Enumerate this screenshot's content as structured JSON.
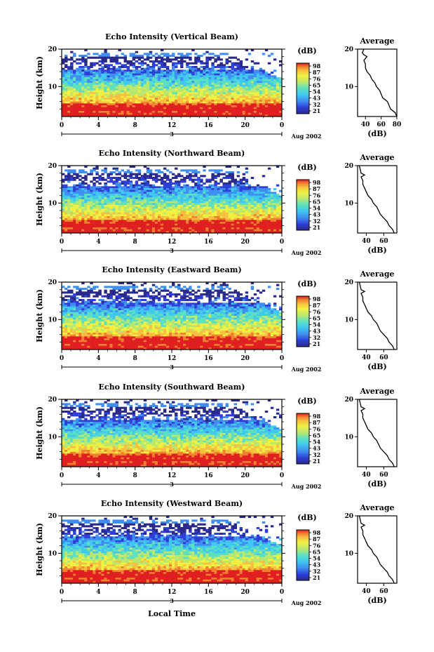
{
  "panels": [
    {
      "title": "Echo Intensity (Vertical Beam)",
      "xticks": [
        "0",
        "4",
        "8",
        "12",
        "16",
        "20",
        "0"
      ],
      "date": "Aug 2002",
      "day": "3",
      "yticks": [
        "10",
        "20"
      ],
      "ylabel": "Height (km)",
      "cbar_unit": "(dB)",
      "cbar_ticks": [
        "98",
        "87",
        "76",
        "65",
        "54",
        "43",
        "32",
        "21"
      ],
      "avg_title": "Average",
      "avg_xticks": [
        "40",
        "60",
        "80"
      ],
      "avg_xlabel": "(dB)",
      "avg_yticks": [
        "10",
        "20"
      ]
    },
    {
      "title": "Echo Intensity (Northward Beam)",
      "xticks": [
        "0",
        "4",
        "8",
        "12",
        "16",
        "20",
        "0"
      ],
      "date": "Aug 2002",
      "day": "3",
      "yticks": [
        "10",
        "20"
      ],
      "ylabel": "Height (km)",
      "cbar_unit": "(dB)",
      "cbar_ticks": [
        "98",
        "87",
        "76",
        "65",
        "54",
        "43",
        "32",
        "21"
      ],
      "avg_title": "Average",
      "avg_xticks": [
        "40",
        "60"
      ],
      "avg_xlabel": "(dB)",
      "avg_yticks": [
        "10",
        "20"
      ]
    },
    {
      "title": "Echo Intensity (Eastward Beam)",
      "xticks": [
        "0",
        "4",
        "8",
        "12",
        "16",
        "20",
        "0"
      ],
      "date": "Aug 2002",
      "day": "3",
      "yticks": [
        "10",
        "20"
      ],
      "ylabel": "Height (km)",
      "cbar_unit": "(dB)",
      "cbar_ticks": [
        "98",
        "87",
        "76",
        "65",
        "54",
        "43",
        "32",
        "21"
      ],
      "avg_title": "Average",
      "avg_xticks": [
        "40",
        "60"
      ],
      "avg_xlabel": "(dB)",
      "avg_yticks": [
        "10",
        "20"
      ]
    },
    {
      "title": "Echo Intensity (Southward Beam)",
      "xticks": [
        "0",
        "4",
        "8",
        "12",
        "16",
        "20",
        "0"
      ],
      "date": "Aug 2002",
      "day": "3",
      "yticks": [
        "10",
        "20"
      ],
      "ylabel": "Height (km)",
      "cbar_unit": "(dB)",
      "cbar_ticks": [
        "98",
        "87",
        "76",
        "65",
        "54",
        "43",
        "32",
        "21"
      ],
      "avg_title": "Average",
      "avg_xticks": [
        "40",
        "60"
      ],
      "avg_xlabel": "(dB)",
      "avg_yticks": [
        "10",
        "20"
      ]
    },
    {
      "title": "Echo Intensity (Westward Beam)",
      "xticks": [
        "0",
        "4",
        "8",
        "12",
        "16",
        "20",
        "0"
      ],
      "date": "Aug 2002",
      "day": "3",
      "yticks": [
        "10",
        "20"
      ],
      "ylabel": "Height (km)",
      "cbar_unit": "(dB)",
      "cbar_ticks": [
        "98",
        "87",
        "76",
        "65",
        "54",
        "43",
        "32",
        "21"
      ],
      "avg_title": "Average",
      "avg_xticks": [
        "40",
        "60"
      ],
      "avg_xlabel": "(dB)",
      "avg_yticks": [
        "10",
        "20"
      ]
    }
  ],
  "xlabel": "Local Time",
  "colors": {
    "scale": [
      "#2a2a8a",
      "#2f3fd8",
      "#3f8ff0",
      "#40c8f0",
      "#5ce0c0",
      "#b8e870",
      "#f0f040",
      "#f8c040",
      "#f08030",
      "#e02020"
    ]
  },
  "chart_data": [
    {
      "type": "heatmap",
      "title": "Echo Intensity (Vertical Beam)",
      "xlabel": "",
      "ylabel": "Height (km)",
      "xlim": [
        0,
        24
      ],
      "ylim": [
        2,
        20
      ],
      "clim": [
        21,
        98
      ],
      "colorbar_ticks": [
        21,
        32,
        43,
        54,
        65,
        76,
        87,
        98
      ],
      "colorbar_label": "(dB)"
    },
    {
      "type": "line",
      "title": "Average",
      "xlabel": "(dB)",
      "xlim": [
        30,
        80
      ],
      "ylim": [
        2,
        20
      ],
      "series": [
        {
          "x": [
            80,
            78,
            72,
            70,
            68,
            62,
            60,
            58,
            54,
            52,
            48,
            46,
            42,
            40,
            40,
            38,
            40,
            42,
            38,
            36,
            38
          ],
          "y": [
            2,
            3,
            4,
            5,
            6,
            7,
            8,
            9,
            10,
            11,
            12,
            13,
            14,
            15,
            16,
            17,
            17.5,
            18,
            18.5,
            19,
            20
          ]
        }
      ]
    },
    {
      "type": "heatmap",
      "title": "Echo Intensity (Northward Beam)",
      "xlabel": "",
      "ylabel": "Height (km)",
      "xlim": [
        0,
        24
      ],
      "ylim": [
        2,
        20
      ],
      "clim": [
        21,
        98
      ],
      "colorbar_ticks": [
        21,
        32,
        43,
        54,
        65,
        76,
        87,
        98
      ],
      "colorbar_label": "(dB)"
    },
    {
      "type": "line",
      "title": "Average",
      "xlabel": "(dB)",
      "xlim": [
        30,
        75
      ],
      "ylim": [
        2,
        20
      ],
      "series": [
        {
          "x": [
            72,
            70,
            66,
            64,
            60,
            56,
            54,
            52,
            48,
            46,
            42,
            40,
            38,
            36,
            36,
            34,
            38,
            34,
            32
          ],
          "y": [
            2,
            3,
            4,
            5,
            6,
            7,
            8,
            9,
            10,
            11,
            12,
            13,
            14,
            15,
            16,
            17,
            17.5,
            18,
            20
          ]
        }
      ]
    },
    {
      "type": "heatmap",
      "title": "Echo Intensity (Eastward Beam)",
      "xlabel": "",
      "ylabel": "Height (km)",
      "xlim": [
        0,
        24
      ],
      "ylim": [
        2,
        20
      ],
      "clim": [
        21,
        98
      ],
      "colorbar_ticks": [
        21,
        32,
        43,
        54,
        65,
        76,
        87,
        98
      ],
      "colorbar_label": "(dB)"
    },
    {
      "type": "line",
      "title": "Average",
      "xlabel": "(dB)",
      "xlim": [
        30,
        75
      ],
      "ylim": [
        2,
        20
      ],
      "series": [
        {
          "x": [
            72,
            70,
            66,
            64,
            60,
            56,
            54,
            52,
            48,
            46,
            42,
            40,
            38,
            36,
            36,
            34,
            38,
            34,
            32
          ],
          "y": [
            2,
            3,
            4,
            5,
            6,
            7,
            8,
            9,
            10,
            11,
            12,
            13,
            14,
            15,
            16,
            17,
            17.5,
            18,
            20
          ]
        }
      ]
    },
    {
      "type": "heatmap",
      "title": "Echo Intensity (Southward Beam)",
      "xlabel": "",
      "ylabel": "Height (km)",
      "xlim": [
        0,
        24
      ],
      "ylim": [
        2,
        20
      ],
      "clim": [
        21,
        98
      ],
      "colorbar_ticks": [
        21,
        32,
        43,
        54,
        65,
        76,
        87,
        98
      ],
      "colorbar_label": "(dB)"
    },
    {
      "type": "line",
      "title": "Average",
      "xlabel": "(dB)",
      "xlim": [
        30,
        75
      ],
      "ylim": [
        2,
        20
      ],
      "series": [
        {
          "x": [
            72,
            70,
            66,
            64,
            60,
            56,
            54,
            52,
            48,
            46,
            42,
            40,
            38,
            36,
            36,
            34,
            38,
            34,
            32
          ],
          "y": [
            2,
            3,
            4,
            5,
            6,
            7,
            8,
            9,
            10,
            11,
            12,
            13,
            14,
            15,
            16,
            17,
            17.5,
            18,
            20
          ]
        }
      ]
    },
    {
      "type": "heatmap",
      "title": "Echo Intensity (Westward Beam)",
      "xlabel": "Local Time",
      "ylabel": "Height (km)",
      "xlim": [
        0,
        24
      ],
      "ylim": [
        2,
        20
      ],
      "clim": [
        21,
        98
      ],
      "colorbar_ticks": [
        21,
        32,
        43,
        54,
        65,
        76,
        87,
        98
      ],
      "colorbar_label": "(dB)"
    },
    {
      "type": "line",
      "title": "Average",
      "xlabel": "(dB)",
      "xlim": [
        30,
        75
      ],
      "ylim": [
        2,
        20
      ],
      "series": [
        {
          "x": [
            72,
            70,
            66,
            64,
            60,
            56,
            54,
            52,
            48,
            46,
            42,
            40,
            38,
            36,
            36,
            34,
            38,
            34,
            32
          ],
          "y": [
            2,
            3,
            4,
            5,
            6,
            7,
            8,
            9,
            10,
            11,
            12,
            13,
            14,
            15,
            16,
            17,
            17.5,
            18,
            20
          ]
        }
      ]
    }
  ]
}
